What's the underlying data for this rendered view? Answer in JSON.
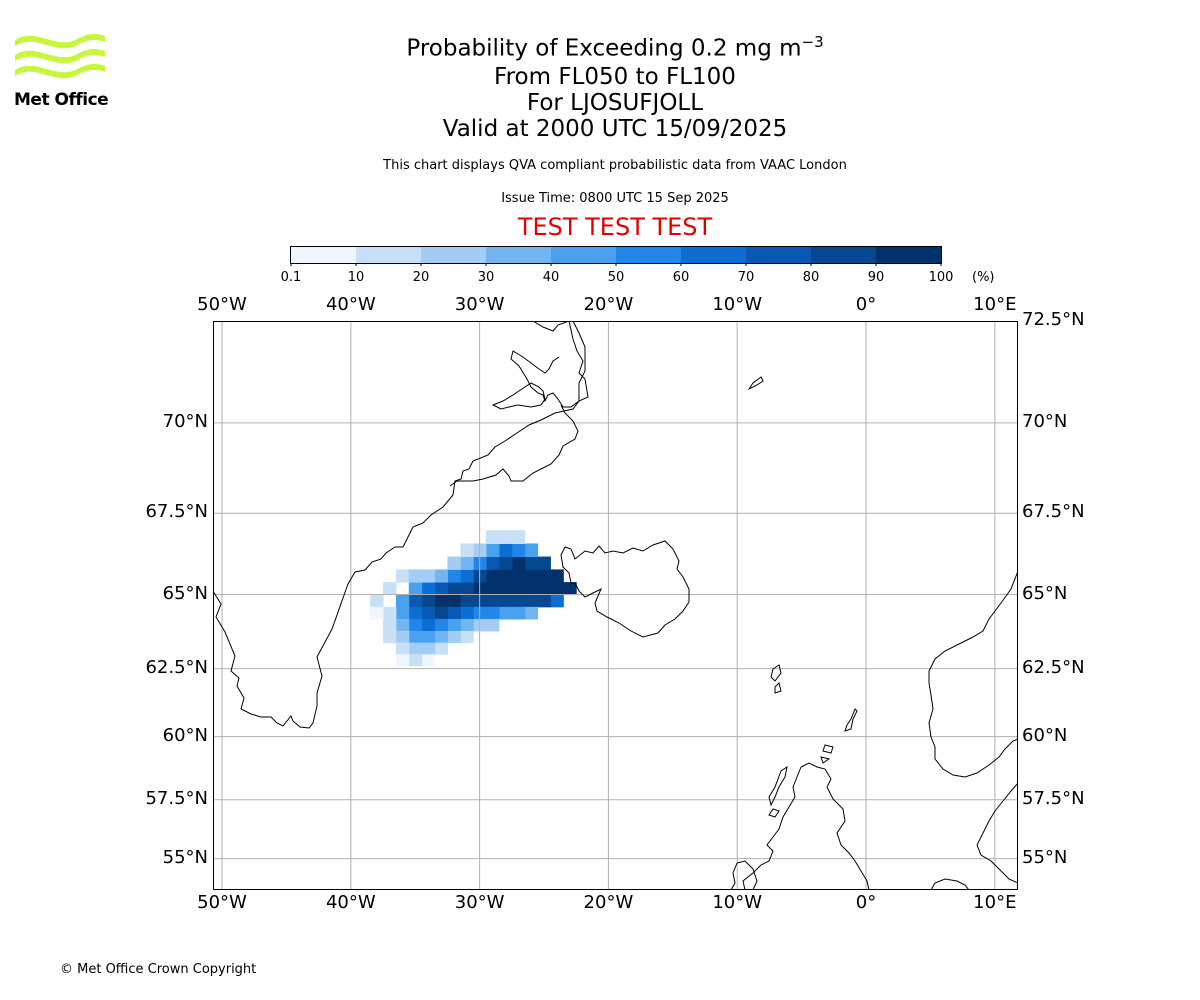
{
  "logo": {
    "text": "Met Office",
    "color": "#c7f73a"
  },
  "title": {
    "main_prefix": "Probability of Exceeding 0.2 mg m",
    "main_superscript": "−3",
    "line2": "From FL050 to FL100",
    "line3": "For LJOSUFJOLL",
    "line4": "Valid at 2000 UTC 15/09/2025"
  },
  "subtitle": "This chart displays QVA compliant probabilistic data from VAAC London",
  "issue_time": "Issue Time: 0800 UTC 15 Sep 2025",
  "test_banner": {
    "text": "TEST TEST TEST",
    "color": "#e00000"
  },
  "colorbar": {
    "ticks": [
      "0.1",
      "10",
      "20",
      "30",
      "40",
      "50",
      "60",
      "70",
      "80",
      "90",
      "100"
    ],
    "unit": "(%)",
    "colors": [
      "#eff6ff",
      "#c7e0f8",
      "#a3cdf4",
      "#73b5f0",
      "#49a0ef",
      "#2086ea",
      "#0b6ed3",
      "#0759b4",
      "#054891",
      "#03316c"
    ]
  },
  "map": {
    "lon_labels": [
      "50°W",
      "40°W",
      "30°W",
      "20°W",
      "10°W",
      "0°",
      "10°E"
    ],
    "lon_values": [
      -50,
      -40,
      -30,
      -20,
      -10,
      0,
      10
    ],
    "lat_labels": [
      "72.5°N",
      "70°N",
      "67.5°N",
      "65°N",
      "62.5°N",
      "60°N",
      "57.5°N",
      "55°N"
    ],
    "lat_values": [
      72.5,
      70,
      67.5,
      65,
      62.5,
      60,
      57.5,
      55
    ],
    "lon_range": [
      -50.7,
      11.8
    ],
    "lat_range": [
      53.6,
      72.5
    ],
    "grid": true,
    "plume_source": "LJOSUFJOLL",
    "plume_cells": [
      [
        -23,
        65.2,
        100
      ],
      [
        -24,
        65.2,
        100
      ],
      [
        -25,
        65.2,
        100
      ],
      [
        -26,
        65.2,
        100
      ],
      [
        -27,
        65.2,
        100
      ],
      [
        -28,
        65.2,
        100
      ],
      [
        -29,
        65.2,
        95
      ],
      [
        -30,
        65.2,
        90
      ],
      [
        -31,
        65.2,
        85
      ],
      [
        -32,
        65.2,
        80
      ],
      [
        -33,
        65.2,
        70
      ],
      [
        -34,
        65.2,
        60
      ],
      [
        -35,
        65.2,
        45
      ],
      [
        -24,
        65.6,
        100
      ],
      [
        -25,
        65.6,
        100
      ],
      [
        -26,
        65.6,
        100
      ],
      [
        -27,
        65.6,
        100
      ],
      [
        -28,
        65.6,
        100
      ],
      [
        -29,
        65.6,
        90
      ],
      [
        -30,
        65.6,
        80
      ],
      [
        -31,
        65.6,
        65
      ],
      [
        -32,
        65.6,
        55
      ],
      [
        -33,
        65.6,
        35
      ],
      [
        -34,
        65.6,
        20
      ],
      [
        -25,
        66.0,
        80
      ],
      [
        -26,
        66.0,
        85
      ],
      [
        -27,
        66.0,
        90
      ],
      [
        -28,
        66.0,
        85
      ],
      [
        -29,
        66.0,
        70
      ],
      [
        -30,
        66.0,
        50
      ],
      [
        -31,
        66.0,
        35
      ],
      [
        -32,
        66.0,
        20
      ],
      [
        -26,
        66.4,
        40
      ],
      [
        -27,
        66.4,
        55
      ],
      [
        -28,
        66.4,
        60
      ],
      [
        -29,
        66.4,
        45
      ],
      [
        -30,
        66.4,
        25
      ],
      [
        -31,
        66.4,
        12
      ],
      [
        -27,
        66.8,
        12
      ],
      [
        -28,
        66.8,
        18
      ],
      [
        -29,
        66.8,
        12
      ],
      [
        -24,
        64.8,
        60
      ],
      [
        -25,
        64.8,
        80
      ],
      [
        -26,
        64.8,
        85
      ],
      [
        -27,
        64.8,
        85
      ],
      [
        -28,
        64.8,
        80
      ],
      [
        -29,
        64.8,
        80
      ],
      [
        -30,
        64.8,
        85
      ],
      [
        -31,
        64.8,
        88
      ],
      [
        -32,
        64.8,
        92
      ],
      [
        -33,
        64.8,
        90
      ],
      [
        -34,
        64.8,
        85
      ],
      [
        -35,
        64.8,
        70
      ],
      [
        -36,
        64.8,
        45
      ],
      [
        -26,
        64.4,
        30
      ],
      [
        -27,
        64.4,
        40
      ],
      [
        -28,
        64.4,
        45
      ],
      [
        -29,
        64.4,
        50
      ],
      [
        -30,
        64.4,
        55
      ],
      [
        -31,
        64.4,
        65
      ],
      [
        -32,
        64.4,
        75
      ],
      [
        -33,
        64.4,
        80
      ],
      [
        -34,
        64.4,
        75
      ],
      [
        -35,
        64.4,
        60
      ],
      [
        -36,
        64.4,
        40
      ],
      [
        -37,
        64.4,
        15
      ],
      [
        -29,
        64.0,
        20
      ],
      [
        -30,
        64.0,
        25
      ],
      [
        -31,
        64.0,
        35
      ],
      [
        -32,
        64.0,
        45
      ],
      [
        -33,
        64.0,
        55
      ],
      [
        -34,
        64.0,
        60
      ],
      [
        -35,
        64.0,
        55
      ],
      [
        -36,
        64.0,
        35
      ],
      [
        -37,
        64.0,
        12
      ],
      [
        -31,
        63.6,
        15
      ],
      [
        -32,
        63.6,
        25
      ],
      [
        -33,
        63.6,
        35
      ],
      [
        -34,
        63.6,
        45
      ],
      [
        -35,
        63.6,
        40
      ],
      [
        -36,
        63.6,
        25
      ],
      [
        -37,
        63.6,
        10
      ],
      [
        -33,
        63.2,
        15
      ],
      [
        -34,
        63.2,
        25
      ],
      [
        -35,
        63.2,
        25
      ],
      [
        -36,
        63.2,
        15
      ],
      [
        -34,
        62.8,
        8
      ],
      [
        -35,
        62.8,
        10
      ],
      [
        -36,
        62.8,
        8
      ],
      [
        -36,
        65.6,
        12
      ],
      [
        -35,
        65.6,
        20
      ],
      [
        -37,
        65.2,
        15
      ],
      [
        -38,
        64.8,
        12
      ],
      [
        -38,
        64.4,
        8
      ]
    ]
  },
  "copyright": "© Met Office Crown Copyright"
}
